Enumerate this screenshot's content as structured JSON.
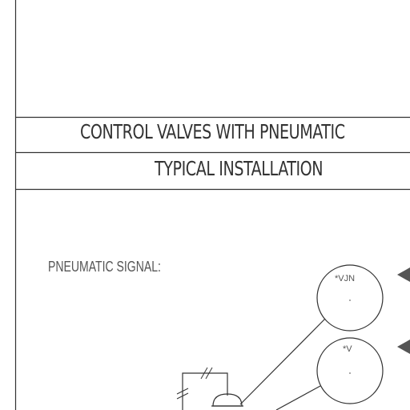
{
  "title": {
    "line1": "CONTROL VALVES WITH PNEUMATIC",
    "line2": "TYPICAL INSTALLATION"
  },
  "signal_label": "PNEUMATIC SIGNAL:",
  "bubbles": [
    {
      "tag": "*VJN"
    },
    {
      "tag": "*V"
    }
  ],
  "colors": {
    "line": "#333333",
    "arrow": "#555555"
  }
}
